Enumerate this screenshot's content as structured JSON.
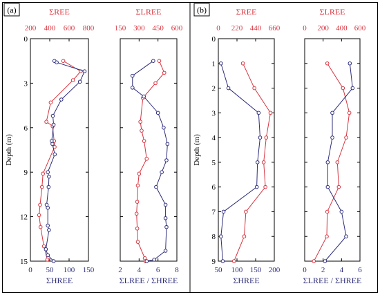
{
  "colors": {
    "ree": "#d6343f",
    "hree": "#2c2c7a",
    "frame": "#000000"
  },
  "panels": [
    {
      "label": "(a)"
    },
    {
      "label": "(b)"
    }
  ],
  "chart_data": [
    {
      "panel": "(a)",
      "type": "line",
      "ylabel": "Depth (m)",
      "ylim": [
        15,
        0
      ],
      "yticks": [
        0,
        3,
        6,
        9,
        12,
        15
      ],
      "subplots": [
        {
          "top_axis": {
            "label": "ΣREE",
            "lim": [
              200,
              800
            ],
            "ticks": [
              200,
              400,
              600,
              800
            ]
          },
          "bottom_axis": {
            "label": "ΣHREE",
            "lim": [
              0,
              150
            ],
            "ticks": [
              0,
              50,
              100,
              150
            ]
          },
          "series": [
            {
              "axis": "top",
              "color": "#d6343f",
              "points": [
                [
                  540,
                  1.5
                ],
                [
                  720,
                  2.2
                ],
                [
                  640,
                  2.8
                ],
                [
                  410,
                  4.3
                ],
                [
                  365,
                  5.6
                ],
                [
                  430,
                  5.9
                ],
                [
                  445,
                  6.9
                ],
                [
                  450,
                  7.3
                ],
                [
                  330,
                  9.1
                ],
                [
                  320,
                  10.0
                ],
                [
                  300,
                  11.2
                ],
                [
                  290,
                  11.9
                ],
                [
                  305,
                  12.7
                ],
                [
                  340,
                  14.0
                ],
                [
                  375,
                  14.9
                ]
              ]
            },
            {
              "axis": "bottom",
              "color": "#2c2c7a",
              "points": [
                [
                  62,
                  1.5
                ],
                [
                  68,
                  1.6
                ],
                [
                  140,
                  2.2
                ],
                [
                  128,
                  2.9
                ],
                [
                  80,
                  4.1
                ],
                [
                  58,
                  5.2
                ],
                [
                  60,
                  5.8
                ],
                [
                  55,
                  6.9
                ],
                [
                  57,
                  7.1
                ],
                [
                  63,
                  7.8
                ],
                [
                  45,
                  9.0
                ],
                [
                  48,
                  9.3
                ],
                [
                  47,
                  10.0
                ],
                [
                  42,
                  11.2
                ],
                [
                  45,
                  11.4
                ],
                [
                  45,
                  12.6
                ],
                [
                  48,
                  12.9
                ],
                [
                  40,
                  14.2
                ],
                [
                  45,
                  14.6
                ],
                [
                  60,
                  15.0
                ]
              ]
            }
          ]
        },
        {
          "top_axis": {
            "label": "ΣLREE",
            "lim": [
              150,
              600
            ],
            "ticks": [
              150,
              300,
              450,
              600
            ]
          },
          "bottom_axis": {
            "label": "ΣLREE / ΣHREE",
            "lim": [
              2,
              8
            ],
            "ticks": [
              2,
              4,
              6,
              8
            ]
          },
          "series": [
            {
              "axis": "top",
              "color": "#d6343f",
              "points": [
                [
                  460,
                  1.5
                ],
                [
                  500,
                  2.3
                ],
                [
                  430,
                  3.0
                ],
                [
                  330,
                  4.0
                ],
                [
                  310,
                  5.6
                ],
                [
                  320,
                  6.2
                ],
                [
                  340,
                  6.9
                ],
                [
                  360,
                  8.1
                ],
                [
                  300,
                  9.1
                ],
                [
                  290,
                  9.9
                ],
                [
                  285,
                  11.0
                ],
                [
                  280,
                  11.8
                ],
                [
                  285,
                  12.8
                ],
                [
                  290,
                  13.7
                ],
                [
                  345,
                  14.8
                ],
                [
                  350,
                  15.0
                ]
              ]
            },
            {
              "axis": "bottom",
              "color": "#2c2c7a",
              "points": [
                [
                  5.5,
                  1.5
                ],
                [
                  3.3,
                  2.5
                ],
                [
                  3.3,
                  3.3
                ],
                [
                  4.5,
                  3.9
                ],
                [
                  6.0,
                  5.0
                ],
                [
                  6.6,
                  6.0
                ],
                [
                  7.0,
                  7.1
                ],
                [
                  6.9,
                  8.2
                ],
                [
                  6.4,
                  9.0
                ],
                [
                  5.8,
                  10.0
                ],
                [
                  6.8,
                  11.2
                ],
                [
                  6.8,
                  12.1
                ],
                [
                  6.9,
                  12.7
                ],
                [
                  6.8,
                  14.3
                ],
                [
                  5.6,
                  14.9
                ],
                [
                  4.8,
                  15.0
                ]
              ]
            }
          ]
        }
      ]
    },
    {
      "panel": "(b)",
      "type": "line",
      "ylabel": "Depth (m)",
      "ylim": [
        9,
        0
      ],
      "yticks": [
        0,
        1,
        2,
        3,
        4,
        5,
        6,
        7,
        8,
        9
      ],
      "subplots": [
        {
          "top_axis": {
            "label": "ΣREE",
            "lim": [
              0,
              660
            ],
            "ticks": [
              0,
              220,
              440,
              660
            ]
          },
          "bottom_axis": {
            "label": "ΣHREE",
            "lim": [
              50,
              200
            ],
            "ticks": [
              50,
              100,
              150,
              200
            ]
          },
          "series": [
            {
              "axis": "top",
              "color": "#d6343f",
              "points": [
                [
                  290,
                  1.0
                ],
                [
                  425,
                  2.0
                ],
                [
                  615,
                  3.0
                ],
                [
                  565,
                  4.0
                ],
                [
                  535,
                  5.0
                ],
                [
                  555,
                  6.0
                ],
                [
                  325,
                  7.0
                ],
                [
                  305,
                  8.0
                ],
                [
                  185,
                  9.0
                ]
              ]
            },
            {
              "axis": "bottom",
              "color": "#2c2c7a",
              "points": [
                [
                  57,
                  1.0
                ],
                [
                  77,
                  2.0
                ],
                [
                  158,
                  3.0
                ],
                [
                  162,
                  4.0
                ],
                [
                  155,
                  5.0
                ],
                [
                  153,
                  6.0
                ],
                [
                  64,
                  7.0
                ],
                [
                  57,
                  8.0
                ],
                [
                  62,
                  9.0
                ]
              ]
            }
          ]
        },
        {
          "top_axis": {
            "label": "ΣLREE",
            "lim": [
              0,
              600
            ],
            "ticks": [
              0,
              200,
              400,
              600
            ]
          },
          "bottom_axis": {
            "label": "ΣLREE / ΣHREE",
            "lim": [
              0,
              6
            ],
            "ticks": [
              0,
              2,
              4,
              6
            ]
          },
          "series": [
            {
              "axis": "top",
              "color": "#d6343f",
              "points": [
                [
                  245,
                  1.0
                ],
                [
                  415,
                  2.0
                ],
                [
                  485,
                  3.0
                ],
                [
                  450,
                  4.0
                ],
                [
                  355,
                  5.0
                ],
                [
                  370,
                  6.0
                ],
                [
                  245,
                  7.0
                ],
                [
                  240,
                  8.0
                ],
                [
                  100,
                  9.0
                ]
              ]
            },
            {
              "axis": "bottom",
              "color": "#2c2c7a",
              "points": [
                [
                  4.9,
                  1.0
                ],
                [
                  5.2,
                  2.0
                ],
                [
                  3.0,
                  3.0
                ],
                [
                  3.0,
                  4.0
                ],
                [
                  2.5,
                  5.0
                ],
                [
                  2.5,
                  6.0
                ],
                [
                  4.0,
                  7.0
                ],
                [
                  4.5,
                  8.0
                ],
                [
                  2.2,
                  9.0
                ]
              ]
            }
          ]
        }
      ]
    }
  ]
}
